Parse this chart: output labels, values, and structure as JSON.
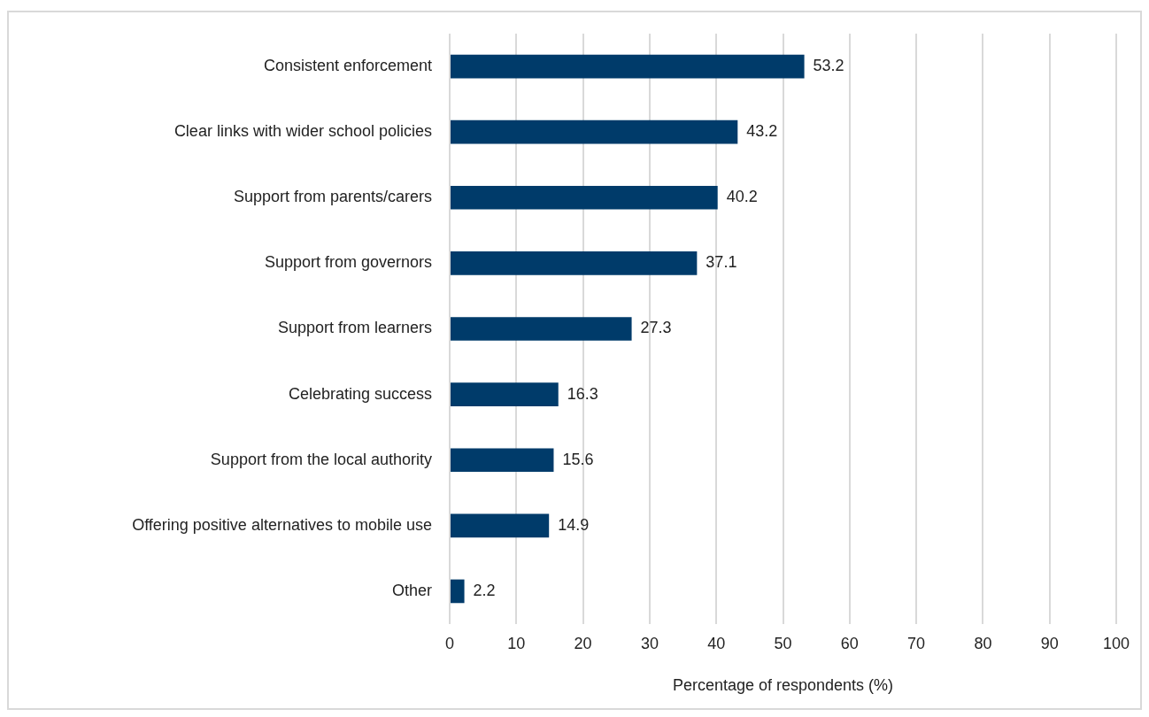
{
  "chart_data": {
    "type": "bar",
    "orientation": "horizontal",
    "xlabel": "Percentage of respondents (%)",
    "categories": [
      "Consistent enforcement",
      "Clear links with wider school policies",
      "Support from parents/carers",
      "Support from governors",
      "Support from learners",
      "Celebrating success",
      "Support from the local authority",
      "Offering positive alternatives to mobile use",
      "Other"
    ],
    "values": [
      53.2,
      43.2,
      40.2,
      37.1,
      27.3,
      16.3,
      15.6,
      14.9,
      2.2
    ],
    "color": "#003b6a",
    "xlim": [
      0,
      100
    ],
    "xticks": [
      0,
      10,
      20,
      30,
      40,
      50,
      60,
      70,
      80,
      90,
      100
    ],
    "grid": "x",
    "data_labels": true,
    "legend": false
  }
}
